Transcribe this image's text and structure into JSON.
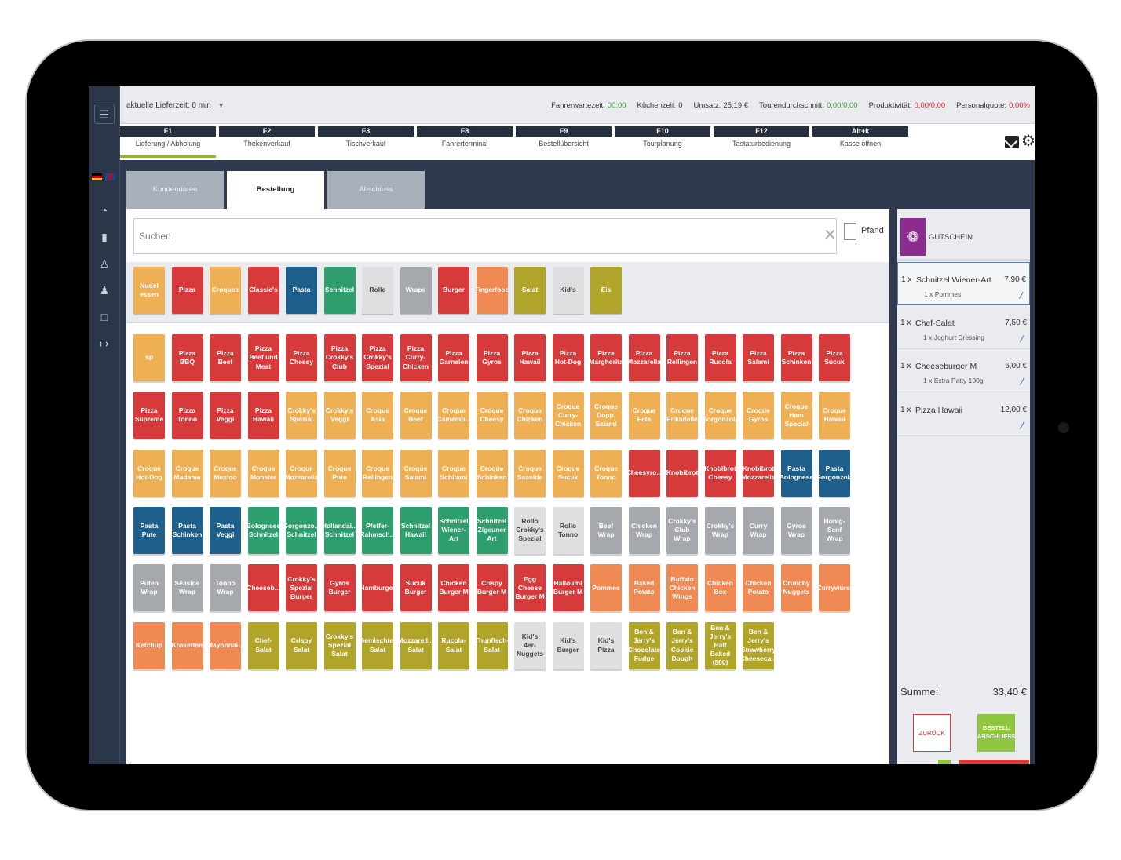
{
  "topbar": {
    "delivery_label": "aktuelle Lieferzeit:",
    "delivery_value": "0 min",
    "stats": [
      {
        "label": "Fahrerwartezeit:",
        "value": "00:00",
        "color": "green"
      },
      {
        "label": "Küchenzeit:",
        "value": "0",
        "color": ""
      },
      {
        "label": "Umsatz:",
        "value": "25,19 €",
        "color": ""
      },
      {
        "label": "Tourendurchschnitt:",
        "value": "0,00/0,00",
        "color": "green"
      },
      {
        "label": "Produktivität:",
        "value": "0,00/0,00",
        "color": "red"
      },
      {
        "label": "Personalquote:",
        "value": "0,00%",
        "color": "red"
      }
    ]
  },
  "fkeys": [
    {
      "key": "F1",
      "label": "Lieferung / Abholung",
      "active": true
    },
    {
      "key": "F2",
      "label": "Thekenverkauf"
    },
    {
      "key": "F3",
      "label": "Tischverkauf"
    },
    {
      "key": "F8",
      "label": "Fahrerterminal"
    },
    {
      "key": "F9",
      "label": "Bestellübersicht"
    },
    {
      "key": "F10",
      "label": "Tourplanung"
    },
    {
      "key": "F12",
      "label": "Tastaturbedienung"
    },
    {
      "key": "Alt+k",
      "label": "Kasse öffnen"
    }
  ],
  "tabs": [
    {
      "label": "Kundendaten"
    },
    {
      "label": "Bestellung",
      "active": true
    },
    {
      "label": "Abschluss"
    }
  ],
  "search": {
    "placeholder": "Suchen"
  },
  "pfand_label": "Pfand",
  "categories": [
    {
      "label": "Nudel essen",
      "color": "orange"
    },
    {
      "label": "Pizza",
      "color": "red"
    },
    {
      "label": "Croques",
      "color": "orange"
    },
    {
      "label": "Classic's",
      "color": "red"
    },
    {
      "label": "Pasta",
      "color": "blue"
    },
    {
      "label": "Schnitzel",
      "color": "green"
    },
    {
      "label": "Rollo",
      "color": "white"
    },
    {
      "label": "Wraps",
      "color": "gray"
    },
    {
      "label": "Burger",
      "color": "red"
    },
    {
      "label": "Fingerfood",
      "color": "salmon"
    },
    {
      "label": "Salat",
      "color": "olive"
    },
    {
      "label": "Kid's",
      "color": "white"
    },
    {
      "label": "Eis",
      "color": "olive"
    }
  ],
  "product_rows": [
    [
      {
        "label": "sp",
        "color": "orange"
      },
      {
        "label": "Pizza BBQ",
        "color": "red"
      },
      {
        "label": "Pizza Beef",
        "color": "red"
      },
      {
        "label": "Pizza Beef und Meat",
        "color": "red"
      },
      {
        "label": "Pizza Cheesy",
        "color": "red"
      },
      {
        "label": "Pizza Crokky's Club",
        "color": "red"
      },
      {
        "label": "Pizza Crokky's Spezial",
        "color": "red"
      },
      {
        "label": "Pizza Curry-Chicken",
        "color": "red"
      },
      {
        "label": "Pizza Garnelen",
        "color": "red"
      },
      {
        "label": "Pizza Gyros",
        "color": "red"
      },
      {
        "label": "Pizza Hawaii",
        "color": "red"
      },
      {
        "label": "Pizza Hot-Dog",
        "color": "red"
      },
      {
        "label": "Pizza Margherita",
        "color": "red"
      },
      {
        "label": "Pizza Mozzarella",
        "color": "red"
      },
      {
        "label": "Pizza Rellingen",
        "color": "red"
      },
      {
        "label": "Pizza Rucola",
        "color": "red"
      },
      {
        "label": "Pizza Salami",
        "color": "red"
      },
      {
        "label": "Pizza Schinken",
        "color": "red"
      },
      {
        "label": "Pizza Sucuk",
        "color": "red"
      }
    ],
    [
      {
        "label": "Pizza Supreme",
        "color": "red"
      },
      {
        "label": "Pizza Tonno",
        "color": "red"
      },
      {
        "label": "Pizza Veggi",
        "color": "red"
      },
      {
        "label": "Pizza Hawaii",
        "color": "red"
      },
      {
        "label": "Crokky's Spezial",
        "color": "orange"
      },
      {
        "label": "Crokky's Veggi",
        "color": "orange"
      },
      {
        "label": "Croque Asia",
        "color": "orange"
      },
      {
        "label": "Croque Beef",
        "color": "orange"
      },
      {
        "label": "Croque Camemb...",
        "color": "orange"
      },
      {
        "label": "Croque Cheesy",
        "color": "orange"
      },
      {
        "label": "Croque Chicken",
        "color": "orange"
      },
      {
        "label": "Croque Curry-Chicken",
        "color": "orange"
      },
      {
        "label": "Croque Dopp. Salami",
        "color": "orange"
      },
      {
        "label": "Croque Feta",
        "color": "orange"
      },
      {
        "label": "Croque Frikadelle",
        "color": "orange"
      },
      {
        "label": "Croque Gorgonzola",
        "color": "orange"
      },
      {
        "label": "Croque Gyros",
        "color": "orange"
      },
      {
        "label": "Croque Ham Special",
        "color": "orange"
      },
      {
        "label": "Croque Hawaii",
        "color": "orange"
      }
    ],
    [
      {
        "label": "Croque Hot-Dog",
        "color": "orange"
      },
      {
        "label": "Croque Madame",
        "color": "orange"
      },
      {
        "label": "Croque Mexico",
        "color": "orange"
      },
      {
        "label": "Croque Monster",
        "color": "orange"
      },
      {
        "label": "Croque Mozzarella",
        "color": "orange"
      },
      {
        "label": "Croque Pute",
        "color": "orange"
      },
      {
        "label": "Croque Rellingen",
        "color": "orange"
      },
      {
        "label": "Croque Salami",
        "color": "orange"
      },
      {
        "label": "Croque Schilami",
        "color": "orange"
      },
      {
        "label": "Croque Schinken",
        "color": "orange"
      },
      {
        "label": "Croque Seaside",
        "color": "orange"
      },
      {
        "label": "Croque Sucuk",
        "color": "orange"
      },
      {
        "label": "Croque Tonno",
        "color": "orange"
      },
      {
        "label": "Cheesyro...",
        "color": "red"
      },
      {
        "label": "Knobibrot",
        "color": "red"
      },
      {
        "label": "Knobibrot Cheesy",
        "color": "red"
      },
      {
        "label": "Knobibrot Mozzarella",
        "color": "red"
      },
      {
        "label": "Pasta Bolognese",
        "color": "blue"
      },
      {
        "label": "Pasta Gorgonzola",
        "color": "blue"
      }
    ],
    [
      {
        "label": "Pasta Pute",
        "color": "blue"
      },
      {
        "label": "Pasta Schinken",
        "color": "blue"
      },
      {
        "label": "Pasta Veggi",
        "color": "blue"
      },
      {
        "label": "Bolognese Schnitzel",
        "color": "green"
      },
      {
        "label": "Gorgonzo... Schnitzel",
        "color": "green"
      },
      {
        "label": "Hollandai... Schnitzel",
        "color": "green"
      },
      {
        "label": "Pfeffer-Rahmsch...",
        "color": "green"
      },
      {
        "label": "Schnitzel Hawaii",
        "color": "green"
      },
      {
        "label": "Schnitzel Wiener-Art",
        "color": "green"
      },
      {
        "label": "Schnitzel Zigeuner Art",
        "color": "green"
      },
      {
        "label": "Rollo Crokky's Spezial",
        "color": "white"
      },
      {
        "label": "Rollo Tonno",
        "color": "white"
      },
      {
        "label": "Beef Wrap",
        "color": "gray"
      },
      {
        "label": "Chicken Wrap",
        "color": "gray"
      },
      {
        "label": "Crokky's Club Wrap",
        "color": "gray"
      },
      {
        "label": "Crokky's Wrap",
        "color": "gray"
      },
      {
        "label": "Curry Wrap",
        "color": "gray"
      },
      {
        "label": "Gyros Wrap",
        "color": "gray"
      },
      {
        "label": "Honig-Senf Wrap",
        "color": "gray"
      }
    ],
    [
      {
        "label": "Puten Wrap",
        "color": "gray"
      },
      {
        "label": "Seaside Wrap",
        "color": "gray"
      },
      {
        "label": "Tonno Wrap",
        "color": "gray"
      },
      {
        "label": "Cheeseb...",
        "color": "red"
      },
      {
        "label": "Crokky's Spezial Burger",
        "color": "red"
      },
      {
        "label": "Gyros Burger",
        "color": "red"
      },
      {
        "label": "Hamburger",
        "color": "red"
      },
      {
        "label": "Sucuk Burger",
        "color": "red"
      },
      {
        "label": "Chicken Burger M",
        "color": "red"
      },
      {
        "label": "Crispy Burger M",
        "color": "red"
      },
      {
        "label": "Egg Cheese Burger M",
        "color": "red"
      },
      {
        "label": "Halloumi Burger M",
        "color": "red"
      },
      {
        "label": "Pommes",
        "color": "salmon"
      },
      {
        "label": "Baked Potato",
        "color": "salmon"
      },
      {
        "label": "Buffalo Chicken Wings",
        "color": "salmon"
      },
      {
        "label": "Chicken Box",
        "color": "salmon"
      },
      {
        "label": "Chicken Potato",
        "color": "salmon"
      },
      {
        "label": "Crunchy Nuggets",
        "color": "salmon"
      },
      {
        "label": "Currywurst",
        "color": "salmon"
      }
    ],
    [
      {
        "label": "Ketchup",
        "color": "salmon"
      },
      {
        "label": "Kroketten",
        "color": "salmon"
      },
      {
        "label": "Mayonnai...",
        "color": "salmon"
      },
      {
        "label": "Chef-Salat",
        "color": "olive"
      },
      {
        "label": "Crispy Salat",
        "color": "olive"
      },
      {
        "label": "Crokky's Spezial Salat",
        "color": "olive"
      },
      {
        "label": "Gemischter Salat",
        "color": "olive"
      },
      {
        "label": "Mozzarell... Salat",
        "color": "olive"
      },
      {
        "label": "Rucola-Salat",
        "color": "olive"
      },
      {
        "label": "Thunfisch-Salat",
        "color": "olive"
      },
      {
        "label": "Kid's 4er-Nuggets",
        "color": "white"
      },
      {
        "label": "Kid's Burger",
        "color": "white"
      },
      {
        "label": "Kid's Pizza",
        "color": "white"
      },
      {
        "label": "Ben & Jerry's Chocolate Fudge",
        "color": "olive"
      },
      {
        "label": "Ben & Jerry's Cookie Dough",
        "color": "olive"
      },
      {
        "label": "Ben & Jerry's Half Baked (500)",
        "color": "olive"
      },
      {
        "label": "Ben & Jerry's Strawberry Cheeseca...",
        "color": "olive"
      }
    ]
  ],
  "cart": {
    "voucher_label": "GUTSCHEIN",
    "items": [
      {
        "qty": "1 x",
        "name": "Schnitzel Wiener-Art",
        "sub": "1 x Pommes",
        "price": "7,90 €",
        "selected": true
      },
      {
        "qty": "1 x",
        "name": "Chef-Salat",
        "sub": "1 x Joghurt Dressing",
        "price": "7,50 €"
      },
      {
        "qty": "1 x",
        "name": "Cheeseburger M",
        "sub": "1 x Extra Patty 100g",
        "price": "6,00 €"
      },
      {
        "qty": "1 x",
        "name": "Pizza Hawaii",
        "sub": "",
        "price": "12,00 €"
      }
    ],
    "sum_label": "Summe:",
    "sum_value": "33,40 €",
    "back_label": "ZURÜCK",
    "finish_label": "BESTELL ABSCHLIESS"
  },
  "icons": {
    "menu": "hamburger-menu-icon",
    "speedometer": "dashboard-icon",
    "drink": "cup-icon",
    "customers": "users-icon",
    "drivers": "drivers-icon",
    "display": "monitor-icon",
    "logout": "logout-icon",
    "mail": "mail-icon",
    "settings": "gear-icon",
    "voucher": "voucher-icon"
  },
  "colors": {
    "orange": "#efaf55",
    "red": "#d63a3a",
    "blue": "#1e5f8c",
    "green": "#2e9e6e",
    "white": "#dedfe1",
    "gray": "#a5a8ad",
    "olive": "#b0a42a",
    "salmon": "#f08a55",
    "accent_green": "#8ec63f",
    "voucher_purple": "#8b2c8e"
  }
}
